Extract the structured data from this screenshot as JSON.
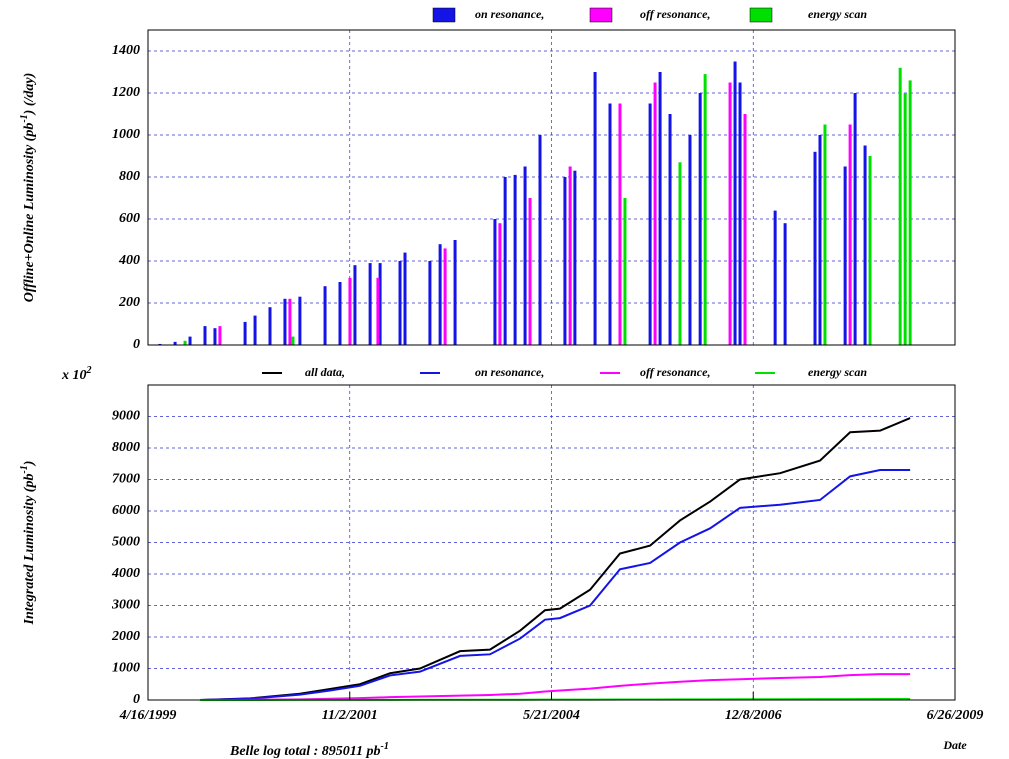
{
  "chart_data": [
    {
      "type": "bar",
      "ylabel": [
        "Offline+Online Luminosity (pb",
        "-1",
        ") (/day)"
      ],
      "xlim": [
        "1999-04-16",
        "2009-06-26"
      ],
      "ylim": [
        0,
        1500
      ],
      "yticks": [
        0,
        200,
        400,
        600,
        800,
        1000,
        1200,
        1400
      ],
      "grid": true,
      "series": [
        {
          "name": "on resonance,",
          "color": "#1414e6",
          "x": [
            "1999-06-10",
            "1999-08-19",
            "1999-10-27",
            "2000-01-04",
            "2000-02-19",
            "2000-07-07",
            "2000-08-22",
            "2000-10-30",
            "2001-01-07",
            "2001-03-17",
            "2001-07-11",
            "2001-09-18",
            "2001-11-26",
            "2002-02-04",
            "2002-03-22",
            "2002-06-22",
            "2002-07-15",
            "2002-11-07",
            "2002-12-24",
            "2003-03-03",
            "2003-09-03",
            "2003-10-20",
            "2003-12-05",
            "2004-01-20",
            "2004-03-29",
            "2004-07-22",
            "2004-09-06",
            "2004-12-08",
            "2005-02-15",
            "2005-08-19",
            "2005-10-04",
            "2005-11-19",
            "2006-02-19",
            "2006-04-07",
            "2006-09-15",
            "2006-10-08",
            "2007-03-19",
            "2007-05-04",
            "2007-09-19",
            "2007-10-12",
            "2008-02-05",
            "2008-03-22",
            "2008-05-07"
          ],
          "values": [
            5,
            15,
            40,
            90,
            80,
            110,
            140,
            180,
            220,
            230,
            280,
            300,
            380,
            390,
            390,
            400,
            440,
            400,
            480,
            500,
            600,
            800,
            810,
            850,
            1000,
            800,
            830,
            1300,
            1150,
            1150,
            1300,
            1100,
            1000,
            1200,
            1350,
            1250,
            640,
            580,
            920,
            1000,
            850,
            1200,
            950
          ]
        },
        {
          "name": "off resonance,",
          "color": "#ff00ff",
          "x": [
            "2000-03-13",
            "2001-01-30",
            "2001-11-03",
            "2002-03-12",
            "2003-01-16",
            "2003-09-26",
            "2004-02-12",
            "2004-08-15",
            "2005-04-02",
            "2005-09-11",
            "2006-08-23",
            "2006-10-31",
            "2008-02-28"
          ],
          "values": [
            90,
            220,
            320,
            320,
            460,
            580,
            700,
            850,
            1150,
            1250,
            1250,
            1100,
            1050
          ]
        },
        {
          "name": "energy scan",
          "color": "#00e000",
          "x": [
            "1999-10-04",
            "2001-02-13",
            "2005-04-25",
            "2006-01-04",
            "2006-04-30",
            "2007-11-04",
            "2008-05-30",
            "2008-10-16",
            "2008-11-08",
            "2008-12-01"
          ],
          "values": [
            20,
            40,
            700,
            870,
            1290,
            1050,
            900,
            1320,
            1200,
            1260
          ]
        }
      ]
    },
    {
      "type": "line",
      "ylabel": [
        "Integrated Luminosity (pb",
        "-1",
        ")"
      ],
      "multiplier": [
        "x 10",
        "2"
      ],
      "xlabel": "Date",
      "note": [
        "Belle log total : 895011 pb",
        "-1"
      ],
      "xlim": [
        "1999-04-16",
        "2009-06-26"
      ],
      "xticks": [
        {
          "value": "1999-04-16",
          "label": "4/16/1999"
        },
        {
          "value": "2001-11-02",
          "label": "11/2/2001"
        },
        {
          "value": "2004-05-21",
          "label": "5/21/2004"
        },
        {
          "value": "2006-12-08",
          "label": "12/8/2006"
        },
        {
          "value": "2009-06-26",
          "label": "6/26/2009"
        }
      ],
      "ylim": [
        0,
        10000
      ],
      "yticks": [
        0,
        1000,
        2000,
        3000,
        4000,
        5000,
        6000,
        7000,
        8000,
        9000
      ],
      "grid": true,
      "x": [
        "1999-12-12",
        "2000-07-30",
        "2001-03-17",
        "2001-08-03",
        "2001-12-19",
        "2002-05-07",
        "2002-09-22",
        "2003-03-26",
        "2003-08-11",
        "2003-12-28",
        "2004-04-21",
        "2004-06-29",
        "2004-11-15",
        "2005-04-02",
        "2005-08-19",
        "2006-01-04",
        "2006-05-23",
        "2006-10-08",
        "2007-04-11",
        "2007-10-12",
        "2008-02-28",
        "2008-07-15",
        "2008-12-01"
      ],
      "series": [
        {
          "name": "all data,",
          "color": "#000000",
          "values": [
            0,
            50,
            200,
            350,
            500,
            850,
            1000,
            1550,
            1600,
            2200,
            2850,
            2900,
            3500,
            4650,
            4900,
            5700,
            6300,
            7000,
            7200,
            7600,
            8500,
            8550,
            8950
          ]
        },
        {
          "name": "on resonance,",
          "color": "#1414e6",
          "values": [
            0,
            40,
            170,
            300,
            450,
            780,
            900,
            1400,
            1450,
            1950,
            2550,
            2600,
            3000,
            4150,
            4350,
            5000,
            5450,
            6100,
            6200,
            6350,
            7100,
            7300,
            7300
          ]
        },
        {
          "name": "off resonance,",
          "color": "#ff00ff",
          "values": [
            0,
            5,
            20,
            40,
            60,
            90,
            110,
            140,
            160,
            200,
            270,
            300,
            360,
            450,
            520,
            580,
            630,
            660,
            700,
            730,
            790,
            820,
            820
          ]
        },
        {
          "name": "energy scan",
          "color": "#00e000",
          "values": [
            0,
            0,
            2,
            3,
            4,
            5,
            6,
            7,
            8,
            9,
            10,
            10,
            12,
            14,
            16,
            18,
            20,
            22,
            24,
            26,
            28,
            30,
            30
          ]
        }
      ]
    }
  ]
}
